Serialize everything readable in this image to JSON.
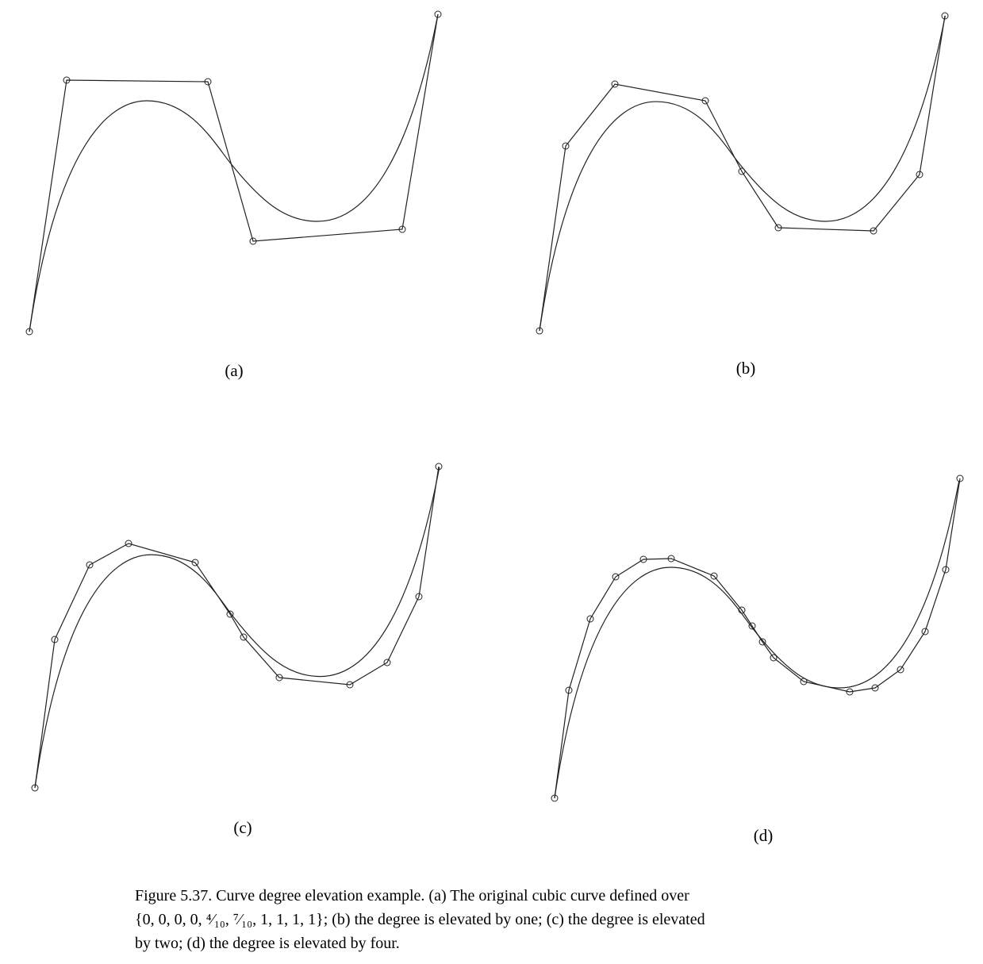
{
  "panels": [
    {
      "label": "(a)"
    },
    {
      "label": "(b)"
    },
    {
      "label": "(c)"
    },
    {
      "label": "(d)"
    }
  ],
  "caption": {
    "lines": [
      "Figure 5.37. Curve degree elevation example. (a) The original cubic curve defined over",
      "{0, 0, 0, 0, ⁴⁄₁₀, ⁷⁄₁₀, 1, 1, 1, 1}; (b) the degree is elevated by one; (c) the degree is elevated",
      "by two; (d) the degree is elevated by four."
    ]
  }
}
